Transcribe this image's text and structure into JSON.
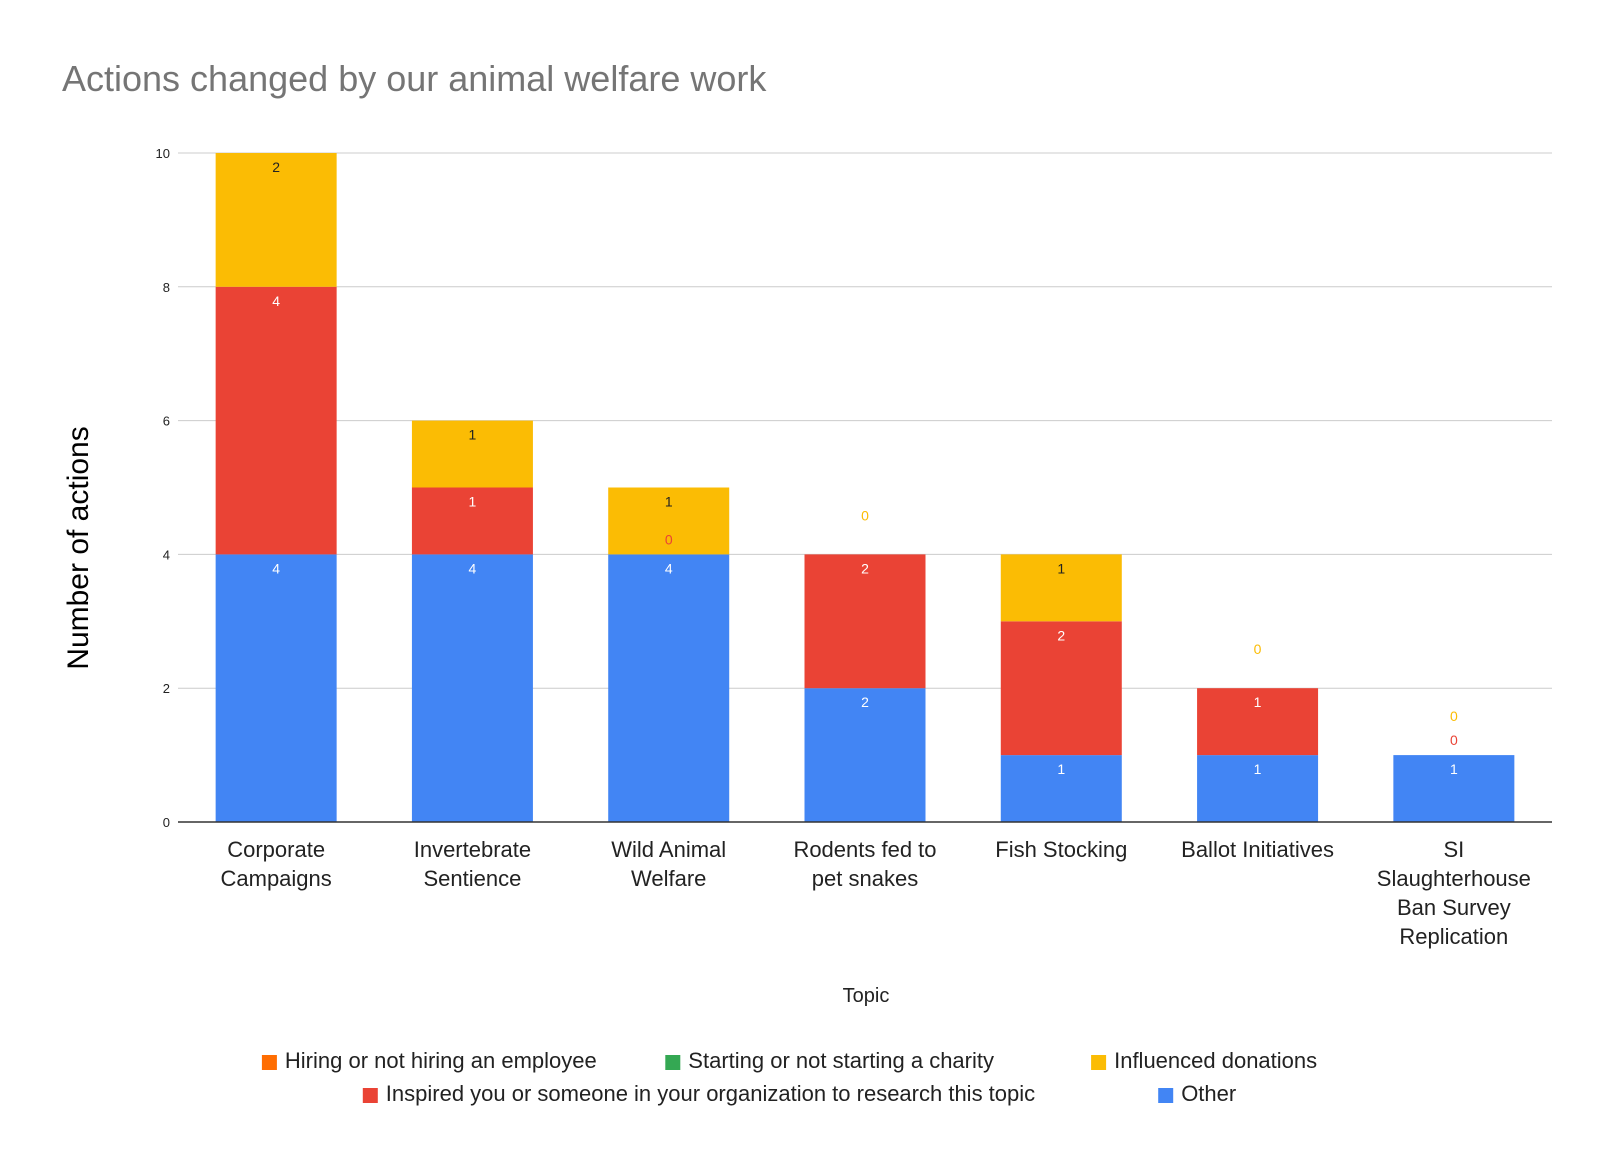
{
  "chart_data": {
    "type": "bar",
    "stacked": true,
    "title": "Actions changed by our animal welfare work",
    "xlabel": "Topic",
    "ylabel": "Number of actions",
    "ylim": [
      0,
      10
    ],
    "yticks": [
      0,
      2,
      4,
      6,
      8,
      10
    ],
    "grid": true,
    "legend_position": "bottom",
    "categories": [
      [
        "Corporate",
        "Campaigns"
      ],
      [
        "Invertebrate",
        "Sentience"
      ],
      [
        "Wild Animal",
        "Welfare"
      ],
      [
        "Rodents fed to",
        "pet snakes"
      ],
      [
        "Fish Stocking"
      ],
      [
        "Ballot Initiatives"
      ],
      [
        "SI",
        "Slaughterhouse",
        "Ban Survey",
        "Replication"
      ]
    ],
    "series": [
      {
        "name": "Other",
        "color": "#4285f4",
        "label_color": "#ffffff",
        "values": [
          4,
          4,
          4,
          2,
          1,
          1,
          1
        ]
      },
      {
        "name": "Inspired you or someone in your organization to research this topic",
        "color": "#ea4335",
        "label_color": "#ffffff",
        "zero_label_color": "#ea4335",
        "values": [
          4,
          1,
          0,
          2,
          2,
          1,
          0
        ]
      },
      {
        "name": "Influenced donations",
        "color": "#fbbc04",
        "label_color": "#222222",
        "zero_label_color": "#fbbc04",
        "values": [
          2,
          1,
          1,
          0,
          1,
          0,
          0
        ]
      }
    ],
    "legend": [
      {
        "name": "Hiring or not hiring an employee",
        "color": "#ff6d01"
      },
      {
        "name": "Starting or not starting a charity",
        "color": "#34a853"
      },
      {
        "name": "Influenced donations",
        "color": "#fbbc04"
      },
      {
        "name": "Inspired you or someone in your organization to research this topic",
        "color": "#ea4335"
      },
      {
        "name": "Other",
        "color": "#4285f4"
      }
    ]
  }
}
